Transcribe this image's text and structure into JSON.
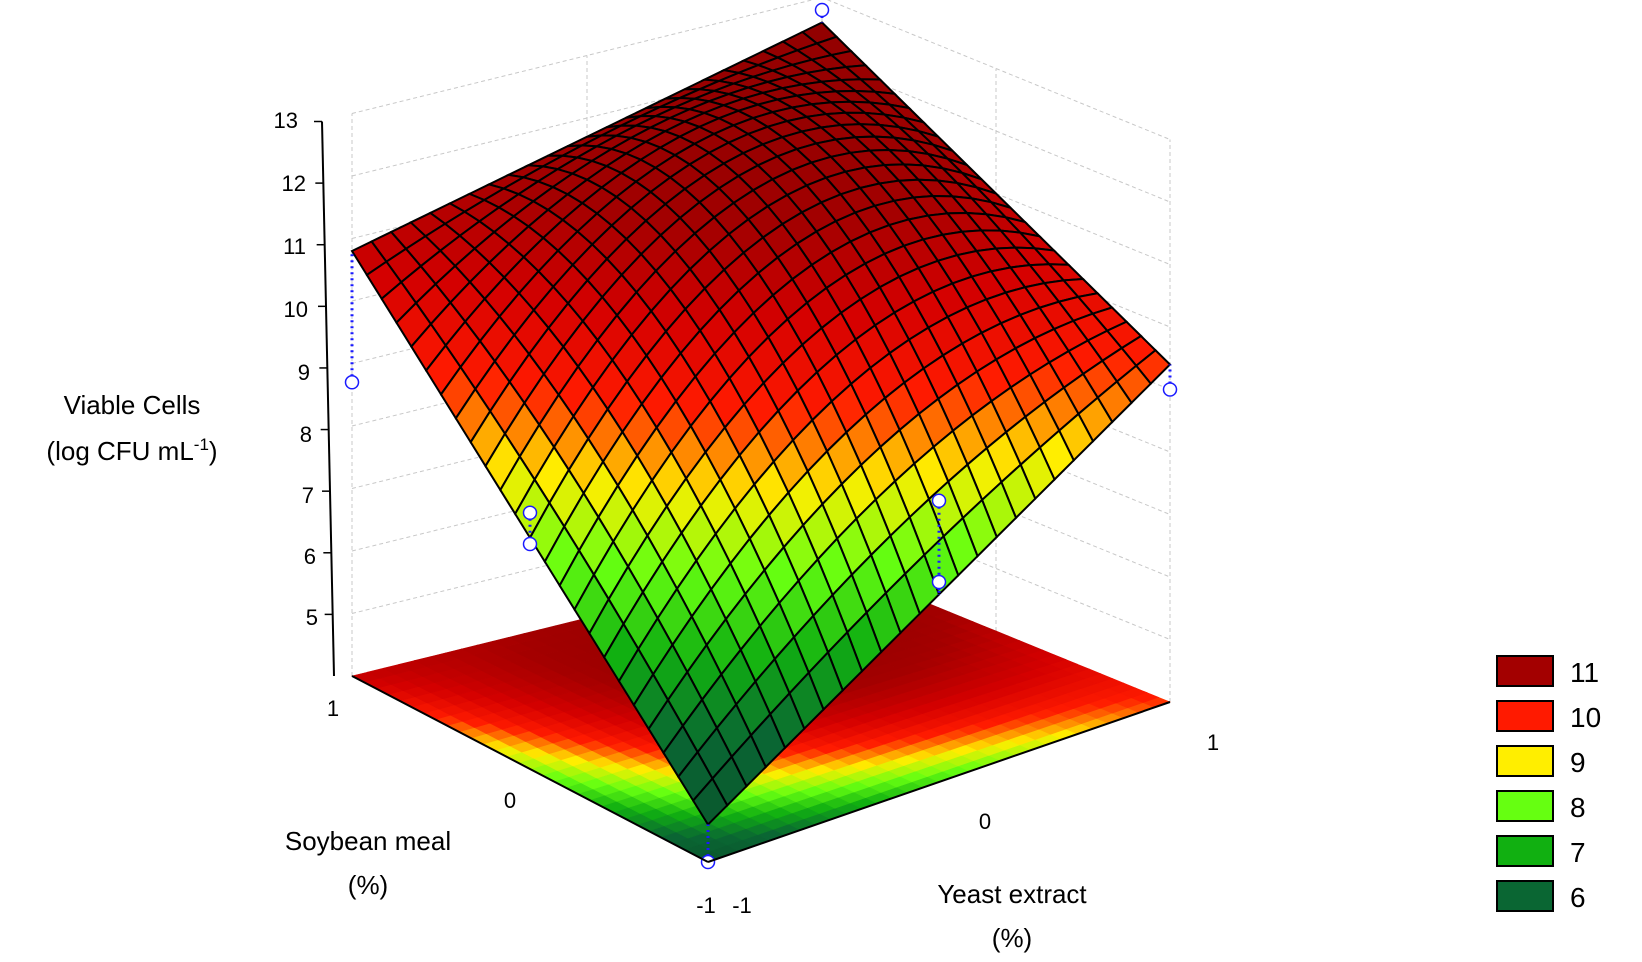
{
  "chart_data": {
    "type": "surface",
    "z_axis": {
      "label_line1": "Viable Cells",
      "label_line2_prefix": "(log CFU  mL",
      "label_line2_sup": "-1",
      "label_line2_suffix": ")",
      "ticks": [
        "13",
        "12",
        "11",
        "10",
        "9",
        "8",
        "7",
        "6",
        "5"
      ],
      "range": [
        4,
        13
      ]
    },
    "x_axis": {
      "label_line1": "Soybean meal",
      "label_line2": "(%)",
      "ticks": [
        "1",
        "0",
        "-1"
      ],
      "range": [
        -1,
        1
      ]
    },
    "y_axis": {
      "label_line1": "Yeast extract",
      "label_line2": "(%)",
      "ticks": [
        "-1",
        "0",
        "1"
      ],
      "range": [
        -1,
        1
      ]
    },
    "legend": {
      "position": "bottom-right",
      "entries": [
        {
          "label": "11",
          "color": "#a30000"
        },
        {
          "label": "10",
          "color": "#ff1a00"
        },
        {
          "label": "9",
          "color": "#ffee00"
        },
        {
          "label": "8",
          "color": "#66ff11"
        },
        {
          "label": "7",
          "color": "#11b011"
        },
        {
          "label": "6",
          "color": "#0a6633"
        }
      ]
    },
    "surface_points": [
      {
        "soybean": -1,
        "yeast": -1,
        "viable_cells": 4.6
      },
      {
        "soybean": 1,
        "yeast": -1,
        "viable_cells": 10.8
      },
      {
        "soybean": -1,
        "yeast": 1,
        "viable_cells": 9.4
      },
      {
        "soybean": 1,
        "yeast": 1,
        "viable_cells": 12.6
      },
      {
        "soybean": 0,
        "yeast": 0,
        "viable_cells": 11.4
      }
    ],
    "observations": [
      {
        "soybean": -1,
        "yeast": -1,
        "viable_cells": 4.0
      },
      {
        "soybean": 1,
        "yeast": -1,
        "viable_cells": 8.7
      },
      {
        "soybean": -1,
        "yeast": 1,
        "viable_cells": 9.0
      },
      {
        "soybean": 1,
        "yeast": 1,
        "viable_cells": 12.8
      },
      {
        "soybean": 0,
        "yeast": -1,
        "viable_cells": 8.1
      },
      {
        "soybean": 0,
        "yeast": -1,
        "viable_cells": 7.6
      },
      {
        "soybean": -1,
        "yeast": 0,
        "viable_cells": 8.5
      },
      {
        "soybean": -1,
        "yeast": 0,
        "viable_cells": 7.2
      }
    ]
  }
}
